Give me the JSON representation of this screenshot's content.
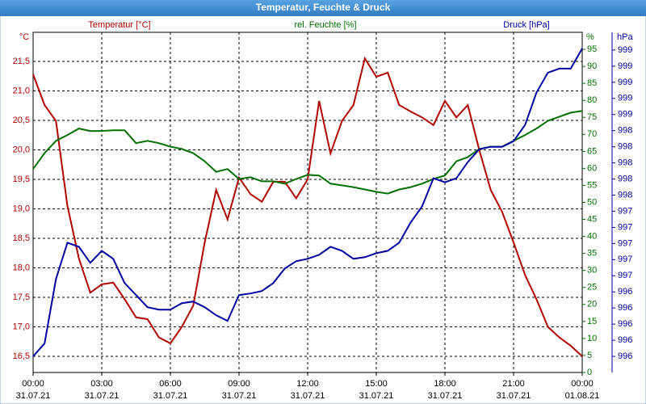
{
  "chart_data": {
    "type": "line",
    "title": "Temperatur, Feuchte & Druck",
    "x": [
      0,
      0.5,
      1,
      1.5,
      2,
      2.5,
      3,
      3.5,
      4,
      4.5,
      5,
      5.5,
      6,
      6.5,
      7,
      7.5,
      8,
      8.5,
      9,
      9.5,
      10,
      10.5,
      11,
      11.5,
      12,
      12.5,
      13,
      13.5,
      14,
      14.5,
      15,
      15.5,
      16,
      16.5,
      17,
      17.5,
      18,
      18.5,
      19,
      19.5,
      20,
      20.5,
      21,
      21.5,
      22,
      22.5,
      23,
      23.5,
      24
    ],
    "xlim": [
      0,
      24
    ],
    "xticks": [
      {
        "value": 0,
        "label": "00:00"
      },
      {
        "value": 3,
        "label": "03:00"
      },
      {
        "value": 6,
        "label": "06:00"
      },
      {
        "value": 9,
        "label": "09:00"
      },
      {
        "value": 12,
        "label": "12:00"
      },
      {
        "value": 15,
        "label": "15:00"
      },
      {
        "value": 18,
        "label": "18:00"
      },
      {
        "value": 21,
        "label": "21:00"
      },
      {
        "value": 24,
        "label": "00:00"
      }
    ],
    "xtick_dates": [
      "31.07.21",
      "31.07.21",
      "31.07.21",
      "31.07.21",
      "31.07.21",
      "31.07.21",
      "31.07.21",
      "31.07.21",
      "01.08.21"
    ],
    "y_unit": "°C",
    "y2_unit": "%",
    "y3_unit": "hPa",
    "ylim": [
      16.226,
      21.993
    ],
    "yticks": [
      {
        "value": 16.5,
        "label": "16,5"
      },
      {
        "value": 17,
        "label": "17,0"
      },
      {
        "value": 17.5,
        "label": "17,5"
      },
      {
        "value": 18,
        "label": "18,0"
      },
      {
        "value": 18.5,
        "label": "18,5"
      },
      {
        "value": 19,
        "label": "19,0"
      },
      {
        "value": 19.5,
        "label": "19,5"
      },
      {
        "value": 20,
        "label": "20,0"
      },
      {
        "value": 20.5,
        "label": "20,5"
      },
      {
        "value": 21,
        "label": "21,0"
      },
      {
        "value": 21.5,
        "label": "21,5"
      }
    ],
    "y2lim": [
      0,
      100
    ],
    "y2ticks": [
      0,
      5,
      10,
      15,
      20,
      25,
      30,
      35,
      40,
      45,
      50,
      55,
      60,
      65,
      70,
      75,
      80,
      85,
      90,
      95
    ],
    "y3lim": [
      995.4,
      999.62
    ],
    "y3ticks": [
      {
        "value": 995.6,
        "label": "996"
      },
      {
        "value": 995.8,
        "label": "996"
      },
      {
        "value": 996.0,
        "label": "996"
      },
      {
        "value": 996.2,
        "label": "996"
      },
      {
        "value": 996.4,
        "label": "996"
      },
      {
        "value": 996.6,
        "label": "997"
      },
      {
        "value": 996.8,
        "label": "997"
      },
      {
        "value": 997.0,
        "label": "997"
      },
      {
        "value": 997.2,
        "label": "997"
      },
      {
        "value": 997.4,
        "label": "997"
      },
      {
        "value": 997.6,
        "label": "998"
      },
      {
        "value": 997.8,
        "label": "998"
      },
      {
        "value": 998.0,
        "label": "998"
      },
      {
        "value": 998.2,
        "label": "998"
      },
      {
        "value": 998.4,
        "label": "998"
      },
      {
        "value": 998.6,
        "label": "999"
      },
      {
        "value": 998.8,
        "label": "999"
      },
      {
        "value": 999.0,
        "label": "999"
      },
      {
        "value": 999.2,
        "label": "999"
      },
      {
        "value": 999.4,
        "label": "999"
      }
    ],
    "grid": true,
    "series": [
      {
        "name": "Temperatur [°C]",
        "color": "#b00000",
        "axis": "y",
        "values": [
          21.28,
          20.76,
          20.49,
          19.05,
          18.16,
          17.58,
          17.72,
          17.75,
          17.47,
          17.16,
          17.13,
          16.82,
          16.72,
          17.0,
          17.36,
          18.43,
          19.32,
          18.82,
          19.53,
          19.25,
          19.12,
          19.46,
          19.46,
          19.18,
          19.5,
          20.83,
          19.94,
          20.49,
          20.76,
          21.55,
          21.24,
          21.31,
          20.76,
          20.65,
          20.55,
          20.42,
          20.83,
          20.55,
          20.76,
          20.0,
          19.32,
          18.95,
          18.43,
          17.88,
          17.47,
          17.0,
          16.82,
          16.68,
          16.5
        ]
      },
      {
        "name": "rel. Feuchte [%]",
        "color": "#007000",
        "axis": "y2",
        "values": [
          59.8,
          64.5,
          68.1,
          69.8,
          71.7,
          71,
          71,
          71.2,
          71.2,
          67.4,
          68.1,
          67.4,
          66.4,
          65.7,
          64.5,
          62.1,
          59,
          59.8,
          56.9,
          57.4,
          56.2,
          56.2,
          55.5,
          56.9,
          58.1,
          57.9,
          55.5,
          55,
          54.5,
          53.8,
          53.1,
          52.6,
          53.8,
          54.5,
          55.5,
          56.9,
          57.9,
          62.1,
          63.3,
          65.7,
          66.4,
          66.4,
          68.1,
          69.8,
          71.7,
          74,
          75.2,
          76.4,
          76.9
        ]
      },
      {
        "name": "Druck [hPa]",
        "color": "#0000a0",
        "axis": "y3",
        "values": [
          995.6,
          995.76,
          996.56,
          997.01,
          996.96,
          996.76,
          996.91,
          996.81,
          996.51,
          996.36,
          996.21,
          996.18,
          996.18,
          996.26,
          996.28,
          996.21,
          996.11,
          996.04,
          996.36,
          996.38,
          996.41,
          996.51,
          996.69,
          996.78,
          996.81,
          996.86,
          996.96,
          996.91,
          996.81,
          996.83,
          996.88,
          996.91,
          997.01,
          997.26,
          997.46,
          997.81,
          997.76,
          997.81,
          998.01,
          998.17,
          998.2,
          998.2,
          998.27,
          998.47,
          998.87,
          999.12,
          999.17,
          999.17,
          999.42
        ]
      }
    ]
  }
}
